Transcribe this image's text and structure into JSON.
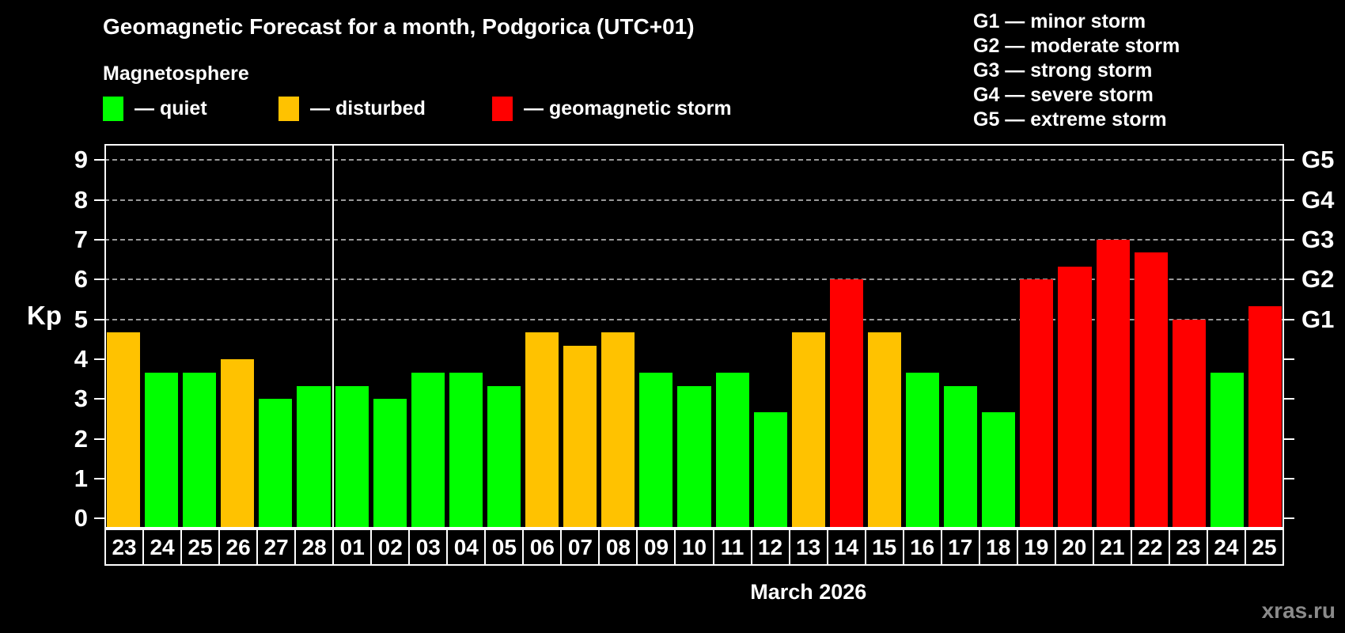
{
  "header": {
    "title": "Geomagnetic Forecast for a month, Podgorica (UTC+01)",
    "subtitle": "Magnetosphere"
  },
  "legend": {
    "items": [
      {
        "id": "quiet",
        "label": "— quiet",
        "color": "#00ff00",
        "x": 130
      },
      {
        "id": "disturbed",
        "label": "— disturbed",
        "color": "#ffc200",
        "x": 352
      },
      {
        "id": "storm",
        "label": "— geomagnetic storm",
        "color": "#ff0000",
        "x": 622
      }
    ]
  },
  "storm_scale_legend": {
    "items": [
      "G1 — minor storm",
      "G2 — moderate storm",
      "G3 — strong storm",
      "G4 — severe storm",
      "G5 — extreme storm"
    ]
  },
  "watermark": "xras.ru",
  "chart_data": {
    "type": "bar",
    "title": "Geomagnetic Forecast for a month, Podgorica (UTC+01)",
    "ylabel": "Kp",
    "xlabel": "March 2026",
    "ylim": [
      0,
      9
    ],
    "yticks": [
      0,
      1,
      2,
      3,
      4,
      5,
      6,
      7,
      8,
      9
    ],
    "grid_levels": [
      5,
      6,
      7,
      8,
      9
    ],
    "right_axis_labels": [
      {
        "kp": 5,
        "text": "G1"
      },
      {
        "kp": 6,
        "text": "G2"
      },
      {
        "kp": 7,
        "text": "G3"
      },
      {
        "kp": 8,
        "text": "G4"
      },
      {
        "kp": 9,
        "text": "G5"
      }
    ],
    "month_separator_after_index": 5,
    "categories": [
      "23",
      "24",
      "25",
      "26",
      "27",
      "28",
      "01",
      "02",
      "03",
      "04",
      "05",
      "06",
      "07",
      "08",
      "09",
      "10",
      "11",
      "12",
      "13",
      "14",
      "15",
      "16",
      "17",
      "18",
      "19",
      "20",
      "21",
      "22",
      "23",
      "24",
      "25"
    ],
    "values": [
      4.67,
      3.67,
      3.67,
      4.0,
      3.0,
      3.33,
      3.33,
      3.0,
      3.67,
      3.67,
      3.33,
      4.67,
      4.33,
      4.67,
      3.67,
      3.33,
      3.67,
      2.67,
      4.67,
      6.0,
      4.67,
      3.67,
      3.33,
      2.67,
      6.0,
      6.33,
      7.0,
      6.67,
      5.0,
      3.67,
      5.33
    ],
    "states": [
      "disturbed",
      "quiet",
      "quiet",
      "disturbed",
      "quiet",
      "quiet",
      "quiet",
      "quiet",
      "quiet",
      "quiet",
      "quiet",
      "disturbed",
      "disturbed",
      "disturbed",
      "quiet",
      "quiet",
      "quiet",
      "quiet",
      "disturbed",
      "storm",
      "disturbed",
      "quiet",
      "quiet",
      "quiet",
      "storm",
      "storm",
      "storm",
      "storm",
      "storm",
      "quiet",
      "storm"
    ],
    "colors": {
      "quiet": "#00ff00",
      "disturbed": "#ffc200",
      "storm": "#ff0000"
    },
    "grid_color": "#9a9a9a",
    "legend_position": "top"
  }
}
